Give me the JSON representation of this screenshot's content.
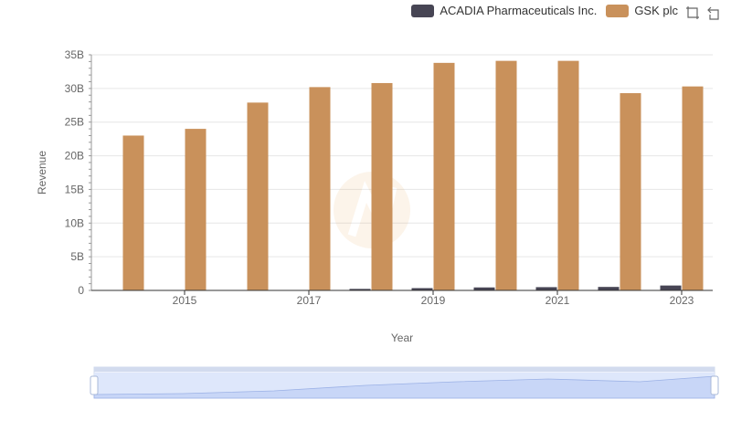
{
  "legend": {
    "items": [
      {
        "name": "ACADIA Pharmaceuticals Inc.",
        "color": "#474554"
      },
      {
        "name": "GSK plc",
        "color": "#c9915b"
      }
    ]
  },
  "toolbox": {
    "icons": [
      "zoom-icon",
      "restore-icon"
    ]
  },
  "chart_data": {
    "type": "bar",
    "xlabel": "Year",
    "ylabel": "Revenue",
    "ylim": [
      0,
      35000000000
    ],
    "y_ticks": [
      "0",
      "5B",
      "10B",
      "15B",
      "20B",
      "25B",
      "30B",
      "35B"
    ],
    "x_tick_labels": [
      "2015",
      "2017",
      "2019",
      "2021",
      "2023"
    ],
    "categories": [
      "2014",
      "2015",
      "2016",
      "2017",
      "2018",
      "2019",
      "2020",
      "2021",
      "2022",
      "2023"
    ],
    "series": [
      {
        "name": "ACADIA Pharmaceuticals Inc.",
        "color": "#474554",
        "values": [
          0,
          0,
          0,
          17000000,
          224000000,
          339000000,
          442000000,
          484000000,
          517000000,
          727000000
        ]
      },
      {
        "name": "GSK plc",
        "color": "#c9915b",
        "values": [
          23000000000,
          24000000000,
          27900000000,
          30200000000,
          30800000000,
          33800000000,
          34100000000,
          34100000000,
          29300000000,
          30300000000
        ]
      }
    ],
    "grid": true,
    "legend_position": "top-right",
    "datazoom": {
      "start": 0,
      "end": 100
    }
  }
}
